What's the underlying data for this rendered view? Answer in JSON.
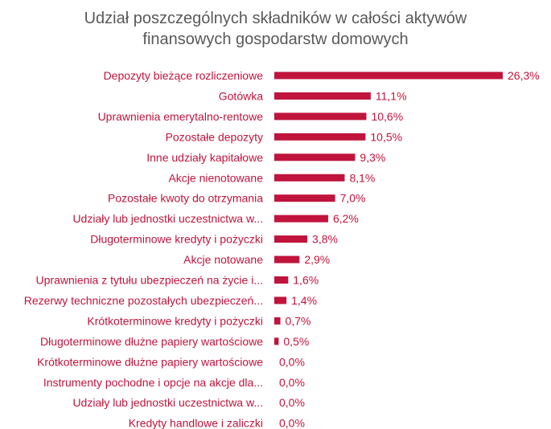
{
  "chart_data": {
    "type": "bar",
    "orientation": "horizontal",
    "title_lines": [
      "Udział poszczególnych składników w całości aktywów",
      "finansowych gospodarstw domowych"
    ],
    "categories": [
      "Depozyty bieżące rozliczeniowe",
      "Gotówka",
      "Uprawnienia emerytalno-rentowe",
      "Pozostałe depozyty",
      "Inne udziały kapitałowe",
      "Akcje nienotowane",
      "Pozostałe kwoty do otrzymania",
      "Udziały lub jednostki uczestnictwa w...",
      "Długoterminowe kredyty i pożyczki",
      "Akcje notowane",
      "Uprawnienia z tytułu ubezpieczeń na życie i...",
      "Rezerwy techniczne pozostałych ubezpieczeń...",
      "Krótkoterminowe kredyty i pożyczki",
      "Długoterminowe dłużne papiery wartościowe",
      "Krótkoterminowe dłużne papiery wartościowe",
      "Instrumenty pochodne i opcje na akcje dla...",
      "Udziały lub jednostki uczestnictwa w...",
      "Kredyty handlowe i zaliczki"
    ],
    "values": [
      26.3,
      11.1,
      10.6,
      10.5,
      9.3,
      8.1,
      7.0,
      6.2,
      3.8,
      2.9,
      1.6,
      1.4,
      0.7,
      0.5,
      0.0,
      0.0,
      0.0,
      0.0
    ],
    "value_labels": [
      "26,3%",
      "11,1%",
      "10,6%",
      "10,5%",
      "9,3%",
      "8,1%",
      "7,0%",
      "6,2%",
      "3,8%",
      "2,9%",
      "1,6%",
      "1,4%",
      "0,7%",
      "0,5%",
      "0,0%",
      "0,0%",
      "0,0%",
      "0,0%"
    ],
    "unit": "%",
    "xlim": [
      0,
      26.3
    ],
    "grid": false,
    "legend": "none",
    "colors": {
      "bar": "#c0143c",
      "label": "#c0143c",
      "title": "#595959"
    }
  }
}
